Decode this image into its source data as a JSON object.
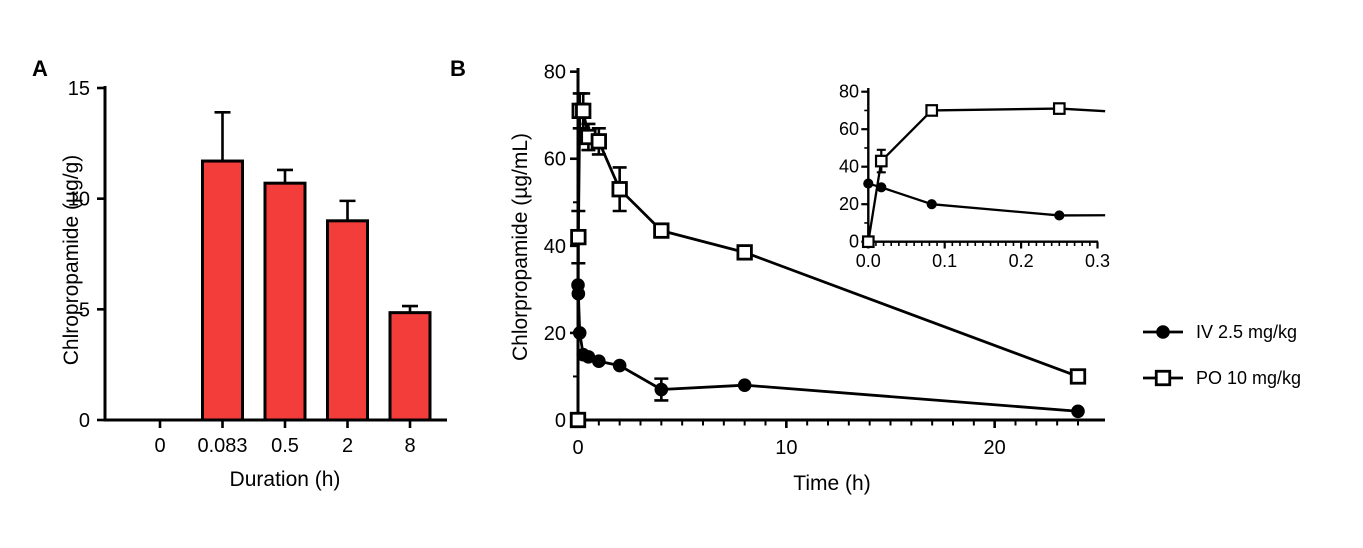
{
  "chart_data": [
    {
      "type": "bar",
      "panel_label": "A",
      "xlabel": "Duration (h)",
      "ylabel": "Chlropropamide (µg/g)",
      "categories": [
        "0",
        "0.083",
        "0.5",
        "2",
        "8"
      ],
      "values": [
        0,
        11.7,
        10.7,
        9.0,
        4.85
      ],
      "errors_sd": [
        0,
        2.2,
        0.6,
        0.9,
        0.3
      ],
      "ylim": [
        0,
        15
      ],
      "yticks": [
        0,
        5,
        10,
        15
      ],
      "bar_color": "#F23D3A",
      "axis_color": "#000000",
      "grid": false
    },
    {
      "type": "line",
      "panel_label": "B",
      "xlabel": "Time (h)",
      "ylabel": "Chlorpropamide (µg/mL)",
      "xlim": [
        0,
        25
      ],
      "xticks": [
        0,
        10,
        20
      ],
      "x_minor_step": 1,
      "ylim": [
        0,
        80
      ],
      "yticks": [
        0,
        20,
        40,
        60,
        80
      ],
      "y_minor_step": 10,
      "grid": false,
      "axis_color": "#000000",
      "series": [
        {
          "name": "IV 2.5 mg/kg",
          "marker": "filled-circle",
          "color": "#000000",
          "x": [
            0,
            0.017,
            0.083,
            0.25,
            0.5,
            1,
            2,
            4,
            8,
            24
          ],
          "y": [
            31,
            29,
            20,
            15,
            14.5,
            13.5,
            12.5,
            7,
            8,
            2
          ],
          "err_sd": [
            0,
            0,
            0,
            0,
            0,
            0,
            0,
            2.5,
            0,
            0
          ]
        },
        {
          "name": "PO 10 mg/kg",
          "marker": "open-square",
          "color": "#000000",
          "x": [
            0,
            0.017,
            0.083,
            0.25,
            0.5,
            1,
            2,
            4,
            8,
            24
          ],
          "y": [
            0,
            42,
            71,
            71,
            65,
            64,
            53,
            43.5,
            38.5,
            10
          ],
          "err_sd": [
            0,
            6,
            4,
            4,
            3,
            3,
            5,
            0,
            0,
            0
          ]
        }
      ],
      "inset": {
        "xlim": [
          0,
          0.3
        ],
        "xticks": [
          0,
          0.1,
          0.2,
          0.3
        ],
        "xtick_labels": [
          "0.0",
          "0.1",
          "0.2",
          "0.3"
        ],
        "x_minor_step": 0.01,
        "ylim": [
          0,
          80
        ],
        "yticks": [
          0,
          20,
          40,
          60,
          80
        ],
        "y_minor_step": 10,
        "series": [
          {
            "name": "IV 2.5 mg/kg",
            "marker": "filled-circle",
            "x": [
              0,
              0.017,
              0.083,
              0.25
            ],
            "y": [
              31,
              29,
              20,
              14
            ],
            "err_sd": [
              0,
              0,
              0,
              0
            ],
            "line_extends_to": {
              "x": 0.31,
              "y": 14.1
            }
          },
          {
            "name": "PO 10 mg/kg",
            "marker": "open-square",
            "x": [
              0,
              0.017,
              0.083,
              0.25
            ],
            "y": [
              0,
              43,
              70,
              71
            ],
            "err_sd": [
              0,
              6,
              0,
              0
            ],
            "line_extends_to": {
              "x": 0.31,
              "y": 69.6
            }
          }
        ]
      }
    }
  ],
  "legend": {
    "items": [
      {
        "label": "IV 2.5 mg/kg",
        "marker": "filled-circle"
      },
      {
        "label": "PO 10 mg/kg",
        "marker": "open-square"
      }
    ]
  }
}
